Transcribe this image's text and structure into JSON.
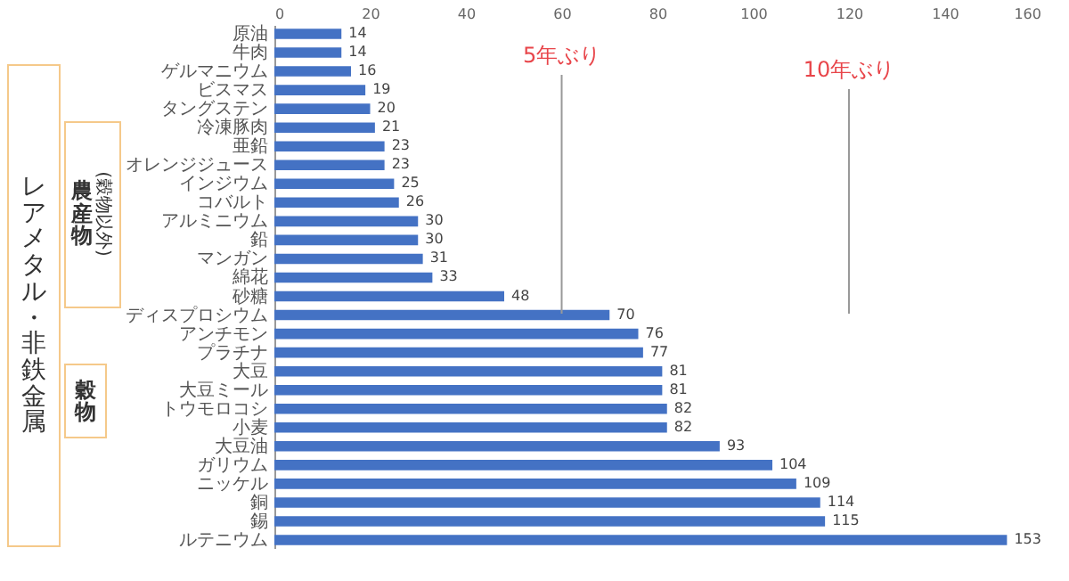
{
  "chart_data": {
    "type": "bar",
    "orientation": "horizontal",
    "categories": [
      "原油",
      "牛肉",
      "ゲルマニウム",
      "ビスマス",
      "タングステン",
      "冷凍豚肉",
      "亜鉛",
      "オレンジジュース",
      "インジウム",
      "コバルト",
      "アルミニウム",
      "鉛",
      "マンガン",
      "綿花",
      "砂糖",
      "ディスプロシウム",
      "アンチモン",
      "プラチナ",
      "大豆",
      "大豆ミール",
      "トウモロコシ",
      "小麦",
      "大豆油",
      "ガリウム",
      "ニッケル",
      "銅",
      "錫",
      "ルテニウム"
    ],
    "values": [
      14,
      14,
      16,
      19,
      20,
      21,
      23,
      23,
      25,
      26,
      30,
      30,
      31,
      33,
      48,
      70,
      76,
      77,
      81,
      81,
      82,
      82,
      93,
      104,
      109,
      114,
      115,
      153
    ],
    "color": "#4472c4",
    "xlim": [
      0,
      160
    ],
    "xticks": [
      0,
      20,
      40,
      60,
      80,
      100,
      120,
      140,
      160
    ],
    "data_labels": true,
    "grid": false,
    "ref_lines": [
      {
        "axis": "x",
        "value": 60,
        "label": "5年ぶり"
      },
      {
        "axis": "x",
        "value": 120,
        "label": "10年ぶり"
      }
    ],
    "annotations": [
      "レアメタル・非鉄金属",
      "農産物",
      "(穀物以外)",
      "穀物"
    ]
  }
}
